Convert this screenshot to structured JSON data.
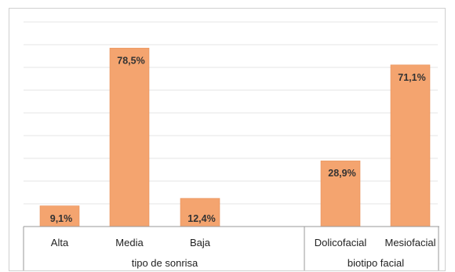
{
  "chart_data": {
    "type": "bar",
    "groups": [
      {
        "name": "tipo de sonrisa",
        "categories": [
          "Alta",
          "Media",
          "Baja"
        ],
        "values": [
          9.1,
          78.5,
          12.4
        ],
        "labels": [
          "9,1%",
          "78,5%",
          "12,4%"
        ]
      },
      {
        "name": "biotipo facial",
        "categories": [
          "Dolicofacial",
          "Mesiofacial"
        ],
        "values": [
          28.9,
          71.1
        ],
        "labels": [
          "28,9%",
          "71,1%"
        ]
      }
    ],
    "ylim": [
      0,
      90
    ],
    "grid": true,
    "title": "",
    "xlabel": "",
    "ylabel": ""
  },
  "colors": {
    "bar": "#F4A46F",
    "bar_edge": "#E8925A",
    "grid": "#e6e6e6",
    "axis": "#999999"
  }
}
